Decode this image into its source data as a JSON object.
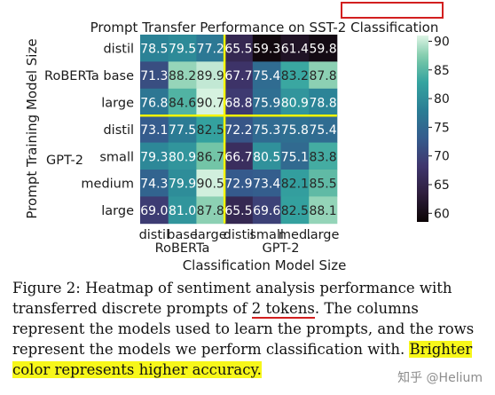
{
  "chart_data": {
    "type": "heatmap",
    "title": "Prompt Transfer Performance on SST-2 Classification",
    "xlabel": "Classification Model Size",
    "ylabel": "Prompt Training Model Size",
    "x_labels": [
      "distil",
      "base",
      "large",
      "distil",
      "small",
      "med.",
      "large"
    ],
    "x_groups": [
      {
        "label": "RoBERTa",
        "span": [
          0,
          2
        ]
      },
      {
        "label": "GPT-2",
        "span": [
          3,
          6
        ]
      }
    ],
    "y_labels": [
      "distil",
      "RoBERTa base",
      "large",
      "distil",
      "small",
      "medium",
      "large"
    ],
    "y_groups": [
      {
        "label": "GPT-2",
        "span": [
          3,
          6
        ]
      }
    ],
    "values": [
      [
        78.5,
        79.5,
        77.2,
        65.5,
        59.3,
        61.4,
        59.8
      ],
      [
        71.3,
        88.2,
        89.9,
        67.7,
        75.4,
        83.2,
        87.8
      ],
      [
        76.8,
        84.6,
        90.7,
        68.8,
        75.9,
        80.9,
        78.8
      ],
      [
        73.1,
        77.5,
        82.5,
        72.2,
        75.3,
        75.8,
        75.4
      ],
      [
        79.3,
        80.9,
        86.7,
        66.7,
        80.5,
        75.1,
        83.8
      ],
      [
        74.3,
        79.9,
        90.5,
        72.9,
        73.4,
        82.1,
        85.5
      ],
      [
        69.0,
        81.0,
        87.8,
        65.5,
        69.6,
        82.5,
        88.1
      ]
    ],
    "vmin": 58.5,
    "vmax": 91.0,
    "colorbar_ticks": [
      90,
      85,
      80,
      75,
      70,
      65,
      60
    ],
    "colormap": "mako",
    "separator_color": "#f5f500"
  },
  "caption": {
    "label": "Figure 2:",
    "text_before": " Heatmap of sentiment analysis performance with transferred discrete prompts of ",
    "underlined": "2 tokens",
    "text_middle": ". The columns represent the models used to learn the prompts, and the rows represent the models we perform classification with. ",
    "highlighted": "Brighter color represents higher accuracy."
  },
  "watermark": "知乎 @Helium",
  "annotation_color": "#d21f1f"
}
